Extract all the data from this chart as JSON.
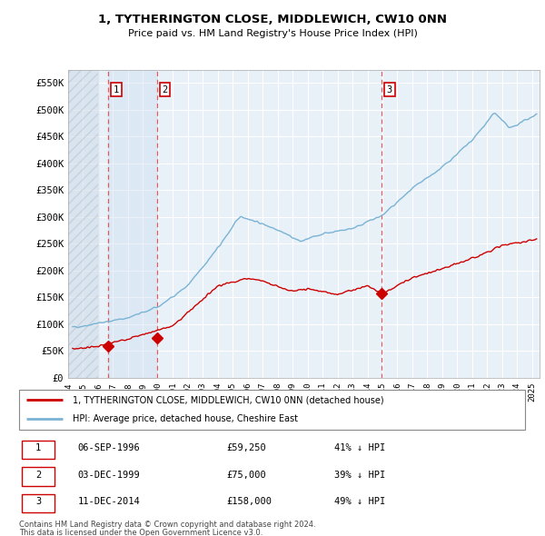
{
  "title": "1, TYTHERINGTON CLOSE, MIDDLEWICH, CW10 0NN",
  "subtitle": "Price paid vs. HM Land Registry's House Price Index (HPI)",
  "ylim": [
    0,
    575000
  ],
  "yticks": [
    0,
    50000,
    100000,
    150000,
    200000,
    250000,
    300000,
    350000,
    400000,
    450000,
    500000,
    550000
  ],
  "ytick_labels": [
    "£0",
    "£50K",
    "£100K",
    "£150K",
    "£200K",
    "£250K",
    "£300K",
    "£350K",
    "£400K",
    "£450K",
    "£500K",
    "£550K"
  ],
  "xlim_start": 1994.0,
  "xlim_end": 2025.5,
  "hpi_color": "#7ab3d4",
  "price_color": "#cc0000",
  "dashed_color": "#dd4444",
  "background_chart": "#e8f0f8",
  "grid_color": "#ffffff",
  "sales": [
    {
      "label": "1",
      "date": "06-SEP-1996",
      "year": 1996.68,
      "price": 59250,
      "pct": "41%"
    },
    {
      "label": "2",
      "date": "03-DEC-1999",
      "year": 1999.92,
      "price": 75000,
      "pct": "39%"
    },
    {
      "label": "3",
      "date": "11-DEC-2014",
      "year": 2014.94,
      "price": 158000,
      "pct": "49%"
    }
  ],
  "legend_line1": "1, TYTHERINGTON CLOSE, MIDDLEWICH, CW10 0NN (detached house)",
  "legend_line2": "HPI: Average price, detached house, Cheshire East",
  "footnote1": "Contains HM Land Registry data © Crown copyright and database right 2024.",
  "footnote2": "This data is licensed under the Open Government Licence v3.0."
}
